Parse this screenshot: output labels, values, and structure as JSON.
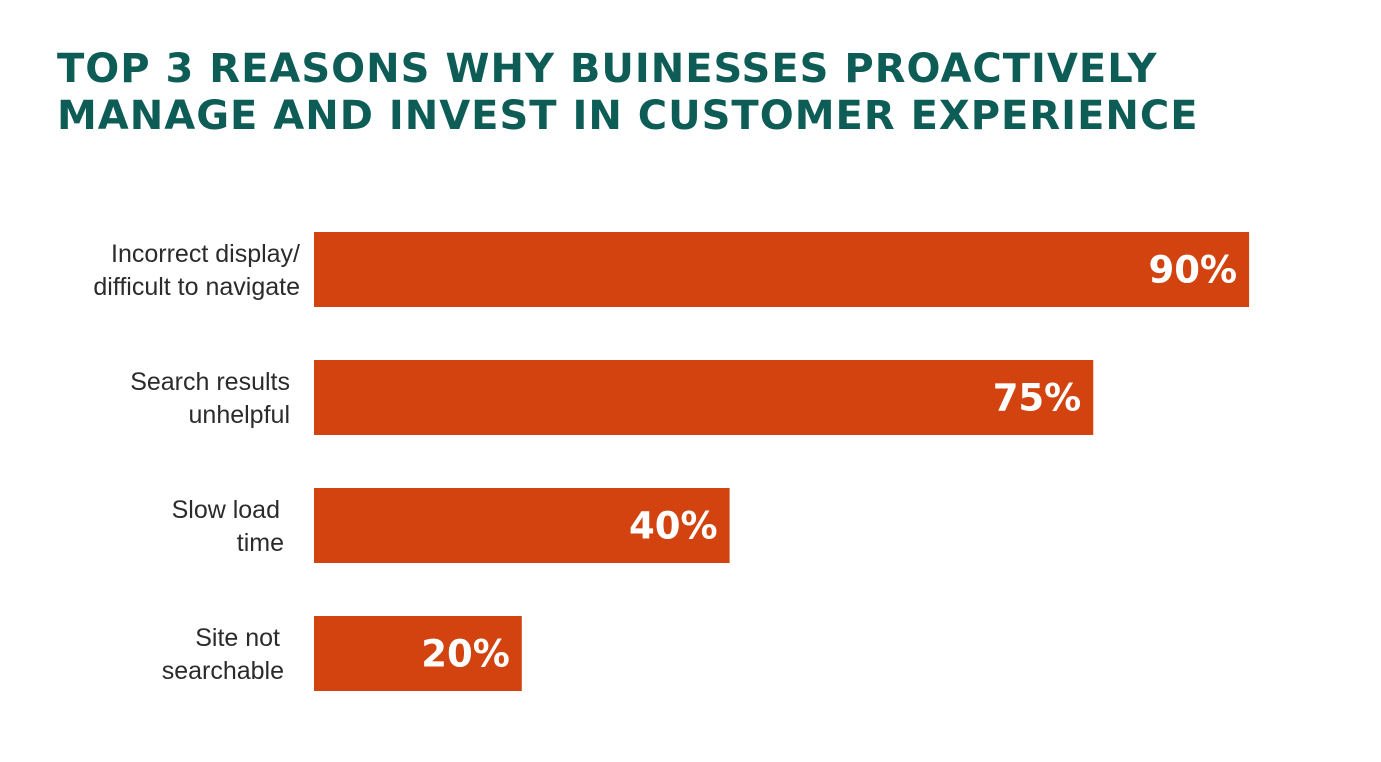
{
  "colors": {
    "title": "#0d5c55",
    "bar": "#d2430f",
    "label": "#2b2b2b",
    "value_text": "#ffffff",
    "background": "#ffffff"
  },
  "chart_data": {
    "type": "bar",
    "orientation": "horizontal",
    "title_lines": [
      "TOP 3 REASONS WHY BUINESSES PROACTIVELY",
      "MANAGE AND INVEST IN CUSTOMER EXPERIENCE"
    ],
    "categories": [
      [
        "Incorrect display/",
        "difficult to navigate"
      ],
      [
        "Search results",
        "unhelpful"
      ],
      [
        "Slow load",
        "time"
      ],
      [
        "Site not",
        "searchable"
      ]
    ],
    "values": [
      90,
      75,
      40,
      20
    ],
    "value_labels": [
      "90%",
      "75%",
      "40%",
      "20%"
    ],
    "unit": "%",
    "xlim": [
      0,
      100
    ],
    "grid": false,
    "legend": "none"
  }
}
